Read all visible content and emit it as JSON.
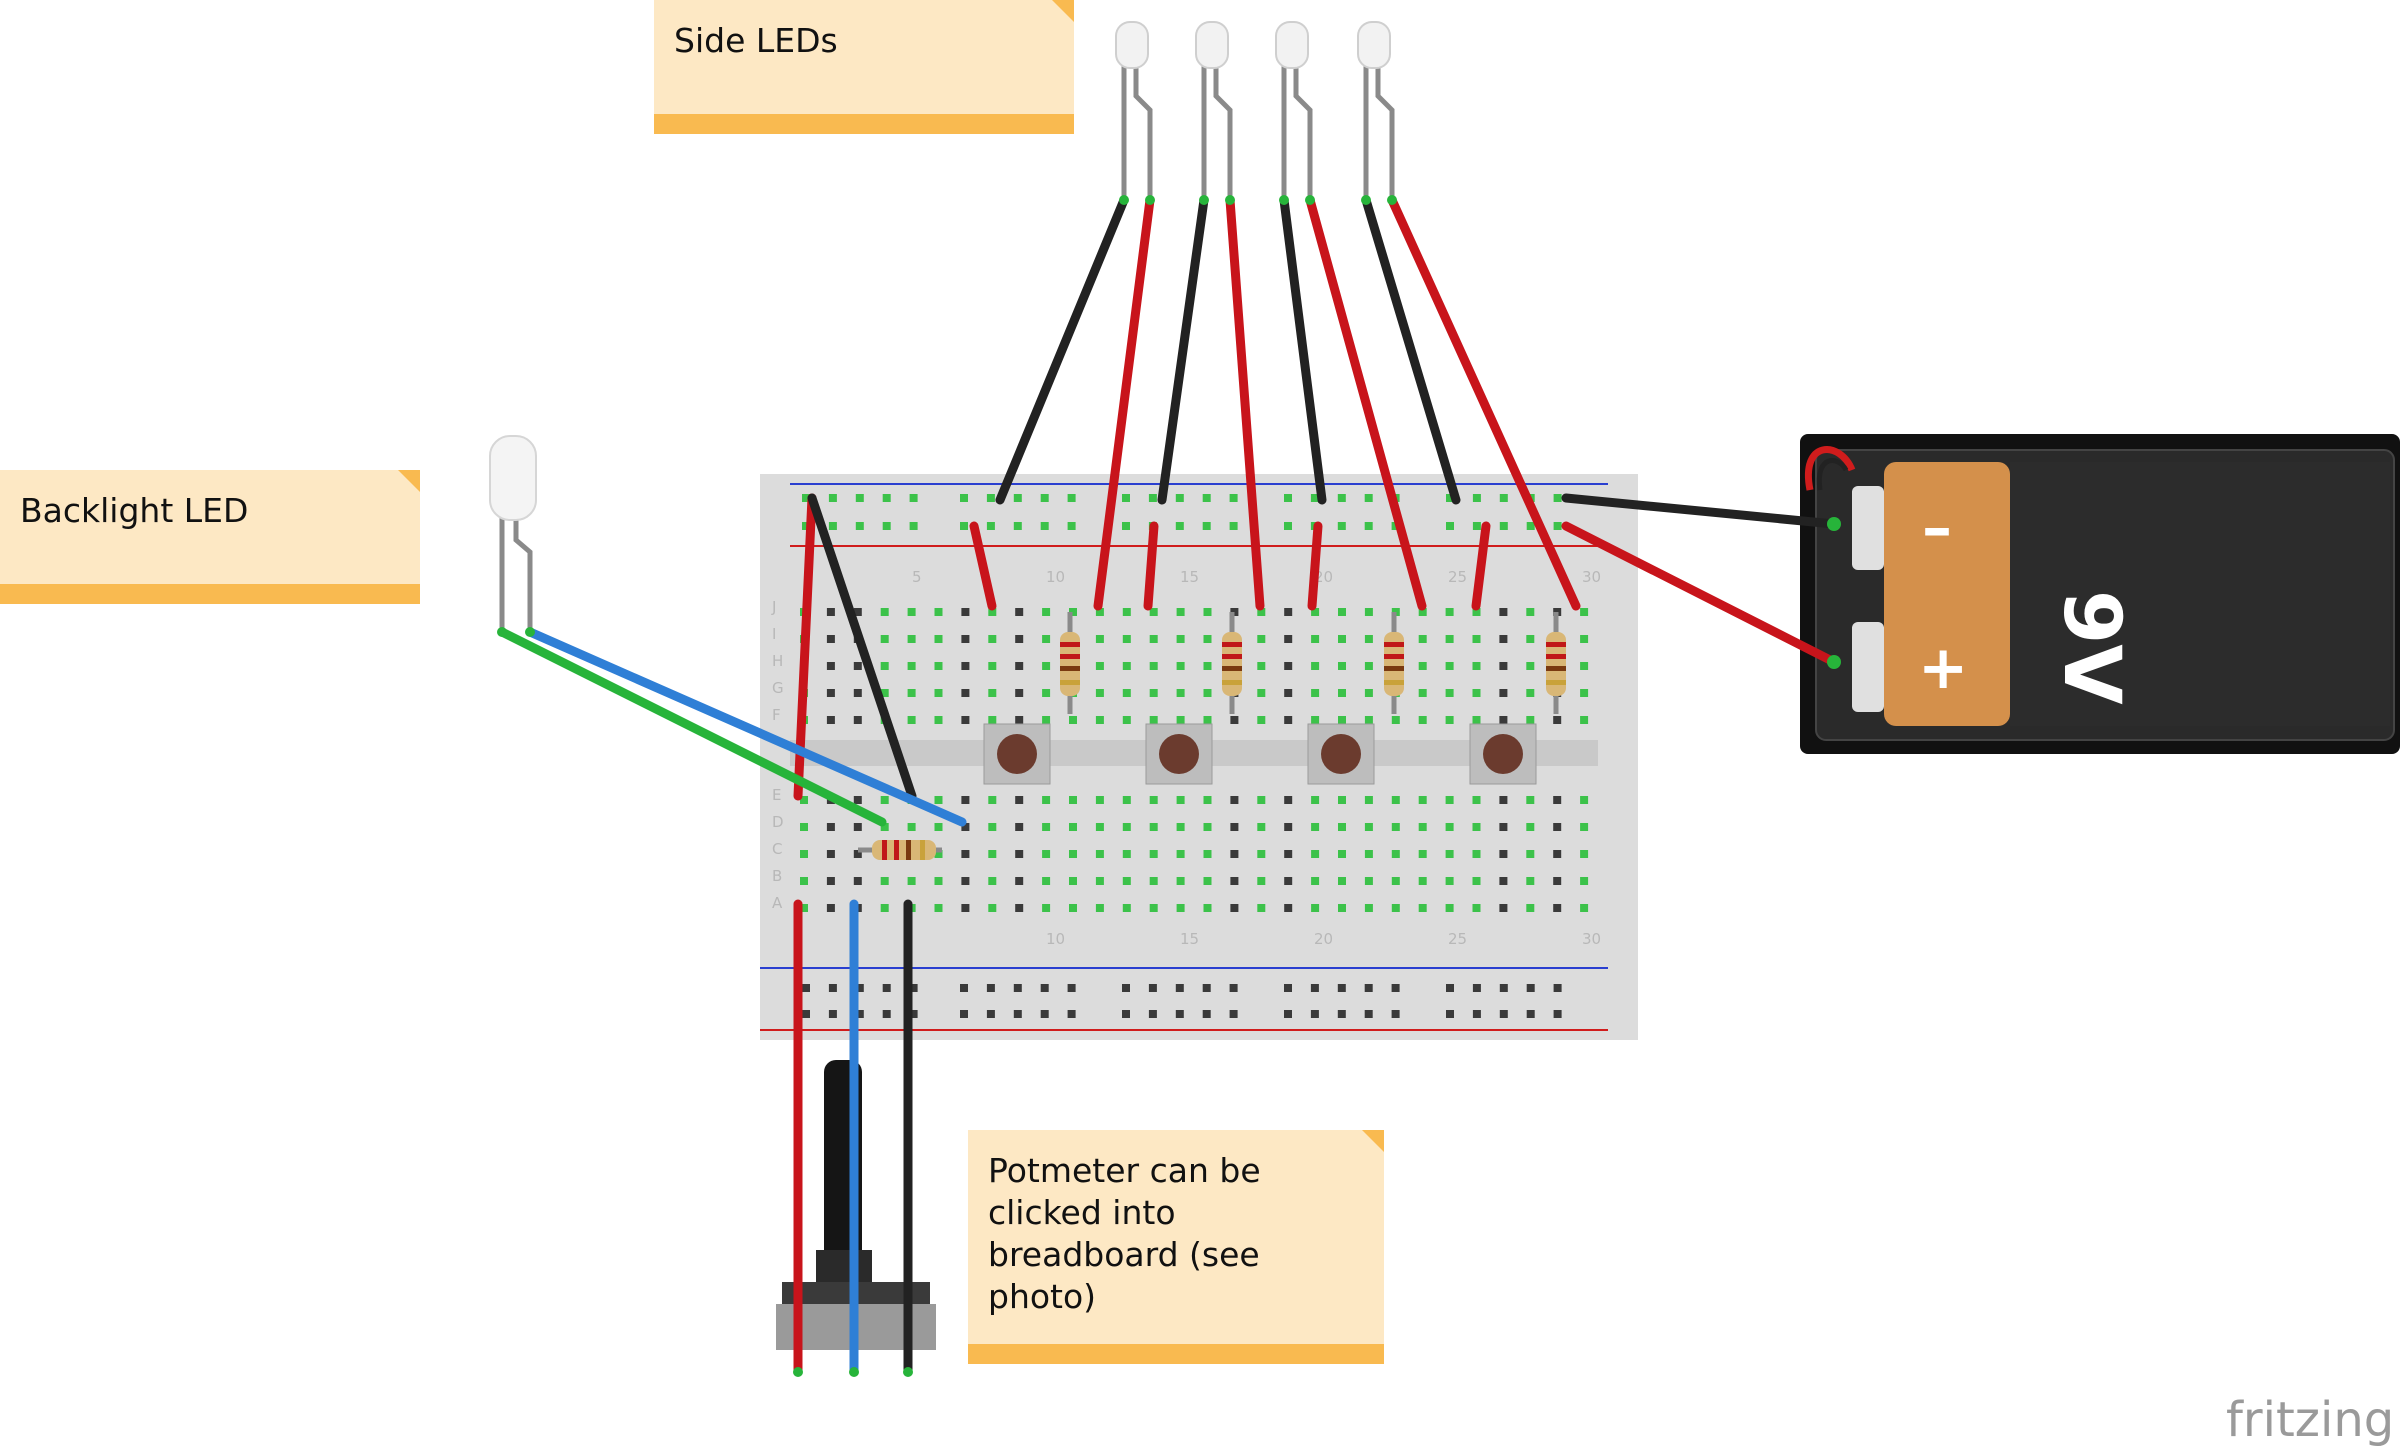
{
  "notes": {
    "side_leds": "Side LEDs",
    "backlight": "Backlight LED",
    "potmeter": [
      "Potmeter can be",
      "clicked into",
      "breadboard (see",
      "photo)"
    ]
  },
  "battery": {
    "label": "9V",
    "minus": "–",
    "plus": "+"
  },
  "breadboard": {
    "column_numbers": [
      "5",
      "10",
      "15",
      "20",
      "25",
      "30"
    ],
    "row_letters_top": [
      "J",
      "I",
      "H",
      "G",
      "F"
    ],
    "row_letters_bottom": [
      "E",
      "D",
      "C",
      "B",
      "A"
    ]
  },
  "watermark": "fritzing",
  "colors": {
    "wire_red": "#c8141b",
    "wire_black": "#222222",
    "wire_blue": "#2f7fd6",
    "wire_green": "#27b43a",
    "note_fill": "#fde8c4",
    "note_band": "#f9ba50",
    "board": "#dcdcdc"
  }
}
